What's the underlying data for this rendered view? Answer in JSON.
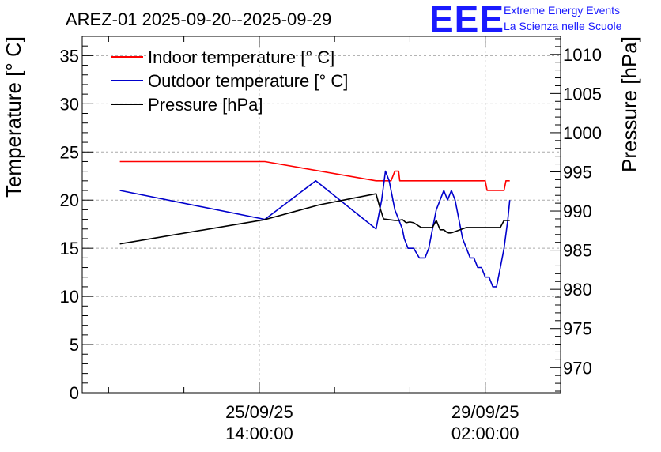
{
  "header": {
    "title": "AREZ-01 2025-09-20--2025-09-29",
    "logo_text": "EEE",
    "logo_line1": "Extreme Energy Events",
    "logo_line2": "La Scienza nelle Scuole"
  },
  "colors": {
    "indoor": "#ff0000",
    "outdoor": "#0000cc",
    "pressure": "#000000",
    "logo": "#1a1aff",
    "grid": "#aaaaaa"
  },
  "chart_data": {
    "type": "line",
    "title": "AREZ-01 2025-09-20--2025-09-29",
    "xlabel": "",
    "ylabel": "Temperature [° C]",
    "y2label": "Pressure [hPa]",
    "x_unit": "hours since 2025-09-25 14:00:00",
    "xlim": [
      -47,
      80
    ],
    "ylim": [
      0,
      37
    ],
    "y2lim": [
      966.8,
      1012.3
    ],
    "grid": true,
    "legend_position": "top-left",
    "x_major_ticks": [
      {
        "x": 0,
        "label1": "25/09/25",
        "label2": "14:00:00"
      },
      {
        "x": 60,
        "label1": "29/09/25",
        "label2": "02:00:00"
      }
    ],
    "x_minor_ticks": [
      -40,
      -20,
      20,
      40
    ],
    "y_ticks": [
      0,
      5,
      10,
      15,
      20,
      25,
      30,
      35
    ],
    "y_tick_labels": [
      "0",
      "5",
      "10",
      "15",
      "20",
      "25",
      "30",
      "35"
    ],
    "y2_ticks": [
      970,
      975,
      980,
      985,
      990,
      995,
      1000,
      1005,
      1010
    ],
    "y2_tick_labels": [
      "970",
      "975",
      "980",
      "985",
      "990",
      "995",
      "1000",
      "1005",
      "1010"
    ],
    "series": [
      {
        "name": "Indoor temperature [° C]",
        "axis": "left",
        "x": [
          -37,
          1.5,
          31,
          34,
          35,
          36,
          37,
          37.3,
          38,
          60,
          60.5,
          65,
          65.5,
          66.5
        ],
        "y": [
          24,
          24,
          22,
          22,
          22,
          23,
          23,
          22,
          22,
          22,
          21,
          21,
          22,
          22
        ]
      },
      {
        "name": "Outdoor temperature [° C]",
        "axis": "left",
        "x": [
          -37,
          1.5,
          15,
          31,
          32.5,
          33.5,
          34.5,
          35.5,
          36,
          37,
          38,
          38.5,
          39.5,
          41,
          42.5,
          44,
          45,
          46,
          47,
          48,
          49,
          50,
          51,
          52,
          53,
          54,
          55,
          56,
          57,
          58,
          59,
          60,
          61,
          62,
          63,
          64,
          65,
          66,
          66.5
        ],
        "y": [
          21,
          18,
          22,
          17,
          20,
          23,
          22,
          20,
          19,
          18,
          17,
          16,
          15,
          15,
          14,
          14,
          15,
          17,
          19,
          20,
          21,
          20,
          21,
          20,
          18,
          16,
          15,
          14,
          14,
          13,
          13,
          12,
          12,
          11,
          11,
          13,
          15,
          18,
          20
        ]
      },
      {
        "name": "Pressure [hPa]",
        "axis": "right",
        "x": [
          -37,
          1.5,
          16,
          31,
          32,
          33,
          36,
          37,
          38,
          39,
          40,
          41,
          43,
          46,
          47,
          48,
          49,
          50,
          51,
          55,
          64,
          65,
          66.5
        ],
        "y": [
          985.8,
          988.9,
          990.8,
          992.2,
          990.5,
          989,
          988.8,
          988.8,
          988.9,
          988.5,
          988.6,
          988.5,
          987.9,
          987.9,
          988.8,
          987.6,
          987.6,
          987.2,
          987.2,
          987.9,
          987.9,
          988.8,
          988.8
        ]
      }
    ]
  }
}
